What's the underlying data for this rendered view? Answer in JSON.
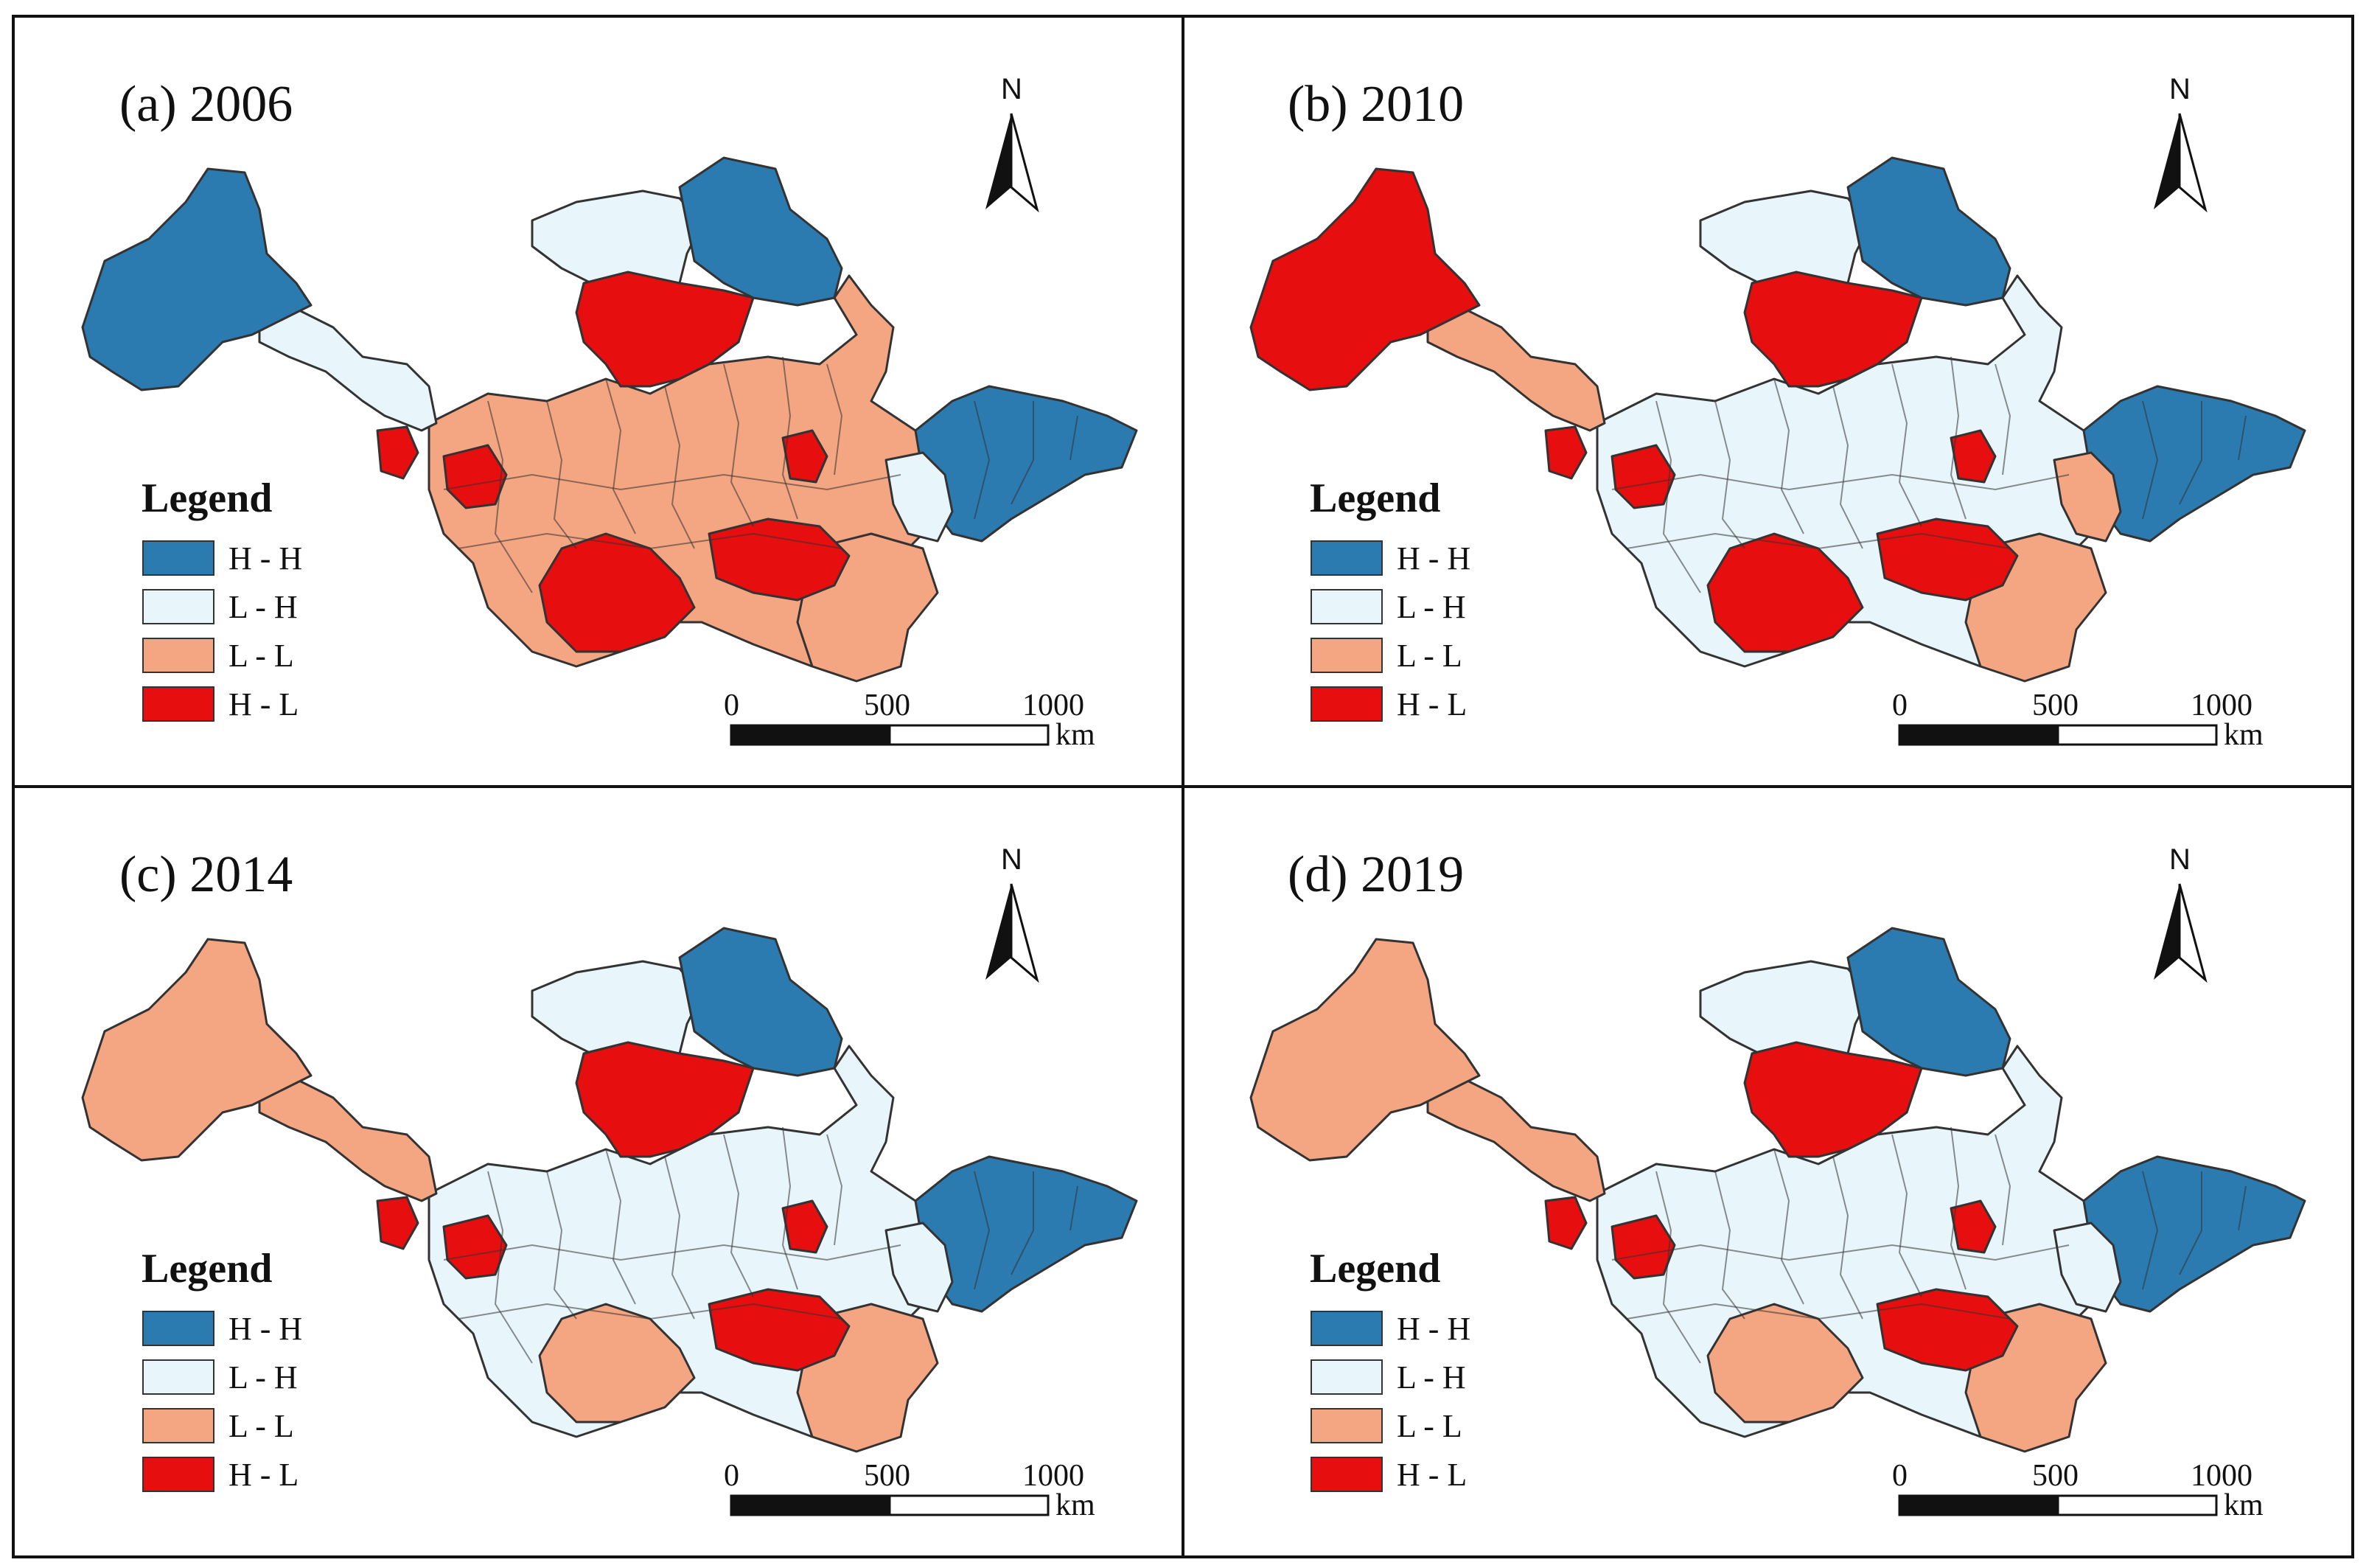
{
  "colors": {
    "H-H": "#2b7bb0",
    "L-H": "#e8f5fb",
    "L-L": "#f4a582",
    "H-L": "#e60e0e"
  },
  "legend": {
    "title": "Legend",
    "items": [
      {
        "key": "H-H",
        "label": "H - H"
      },
      {
        "key": "L-H",
        "label": "L - H"
      },
      {
        "key": "L-L",
        "label": "L - L"
      },
      {
        "key": "H-L",
        "label": "H - L"
      }
    ]
  },
  "scalebar": {
    "ticks": [
      "0",
      "500",
      "1000"
    ],
    "unit": "km"
  },
  "north": {
    "label": "N"
  },
  "panels": [
    {
      "title": "(a) 2006",
      "regions": {
        "west": "H-H",
        "corridor": "L-H",
        "north_plateau": "L-H",
        "northeast": "H-H",
        "center_north": "H-L",
        "center_mid": "L-L",
        "center_south": "H-L",
        "south_central": "H-L",
        "east_coast": "H-H",
        "east_inner": "L-H",
        "southeast": "L-L",
        "island": "H-L",
        "west_hotspot": "H-L",
        "east_hotspot": "H-L"
      }
    },
    {
      "title": "(b) 2010",
      "regions": {
        "west": "H-L",
        "corridor": "L-L",
        "north_plateau": "L-H",
        "northeast": "H-H",
        "center_north": "H-L",
        "center_mid": "L-H",
        "center_south": "H-L",
        "south_central": "H-L",
        "east_coast": "H-H",
        "east_inner": "L-L",
        "southeast": "L-L",
        "island": "H-L",
        "west_hotspot": "H-L",
        "east_hotspot": "H-L"
      }
    },
    {
      "title": "(c) 2014",
      "regions": {
        "west": "L-L",
        "corridor": "L-L",
        "north_plateau": "L-H",
        "northeast": "H-H",
        "center_north": "H-L",
        "center_mid": "L-H",
        "center_south": "L-L",
        "south_central": "H-L",
        "east_coast": "H-H",
        "east_inner": "L-H",
        "southeast": "L-L",
        "island": "H-L",
        "west_hotspot": "H-L",
        "east_hotspot": "H-L"
      }
    },
    {
      "title": "(d) 2019",
      "regions": {
        "west": "L-L",
        "corridor": "L-L",
        "north_plateau": "L-H",
        "northeast": "H-H",
        "center_north": "H-L",
        "center_mid": "L-H",
        "center_south": "L-L",
        "south_central": "H-L",
        "east_coast": "H-H",
        "east_inner": "L-H",
        "southeast": "L-L",
        "island": "H-L",
        "west_hotspot": "H-L",
        "east_hotspot": "H-L"
      }
    }
  ]
}
